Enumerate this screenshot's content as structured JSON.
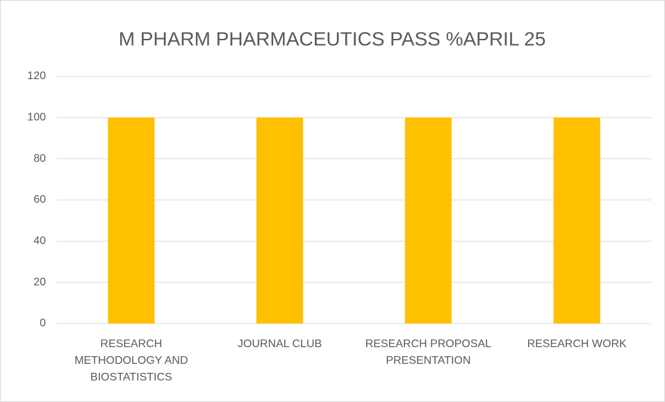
{
  "chart_data": {
    "type": "bar",
    "title": "M PHARM PHARMACEUTICS PASS %APRIL 25",
    "categories": [
      "RESEARCH METHODOLOGY AND BIOSTATISTICS",
      "JOURNAL CLUB",
      "RESEARCH PROPOSAL PRESENTATION",
      "RESEARCH WORK"
    ],
    "values": [
      100,
      100,
      100,
      100
    ],
    "color": "#ffc000",
    "ylim": [
      0,
      120
    ],
    "yticks": [
      0,
      20,
      40,
      60,
      80,
      100,
      120
    ],
    "grid": true
  }
}
